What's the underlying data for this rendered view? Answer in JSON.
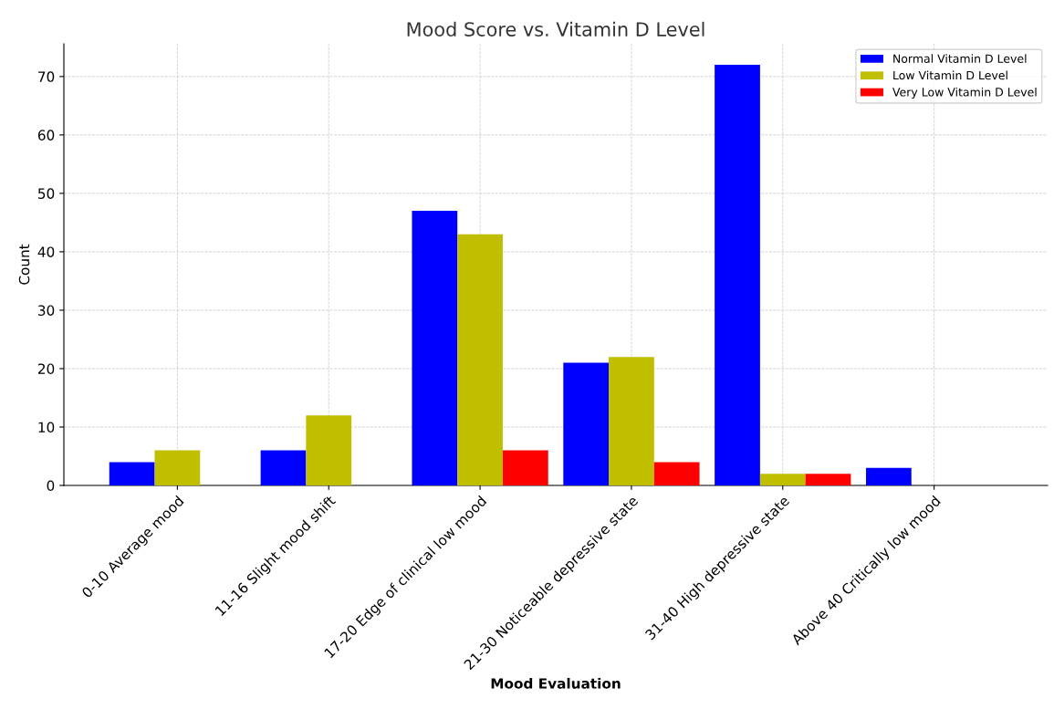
{
  "chart_data": {
    "type": "bar",
    "title": "Mood Score vs. Vitamin D Level",
    "xlabel": "Mood Evaluation",
    "ylabel": "Count",
    "categories": [
      "0-10 Average mood",
      "11-16 Slight mood shift",
      "17-20 Edge of clinical low mood",
      "21-30 Noticeable depressive state",
      "31-40 High depressive state",
      "Above 40 Critically low mood"
    ],
    "series": [
      {
        "name": "Normal Vitamin D Level",
        "color": "#0000ff",
        "values": [
          4,
          6,
          47,
          21,
          72,
          3
        ]
      },
      {
        "name": "Low Vitamin D Level",
        "color": "#bfbf00",
        "values": [
          6,
          12,
          43,
          22,
          2,
          0
        ]
      },
      {
        "name": "Very Low Vitamin D Level",
        "color": "#ff0000",
        "values": [
          0,
          0,
          6,
          4,
          2,
          0
        ]
      }
    ],
    "ylim": [
      0,
      75.6
    ],
    "yticks": [
      0,
      10,
      20,
      30,
      40,
      50,
      60,
      70
    ],
    "grid": true,
    "legend": "top right"
  }
}
